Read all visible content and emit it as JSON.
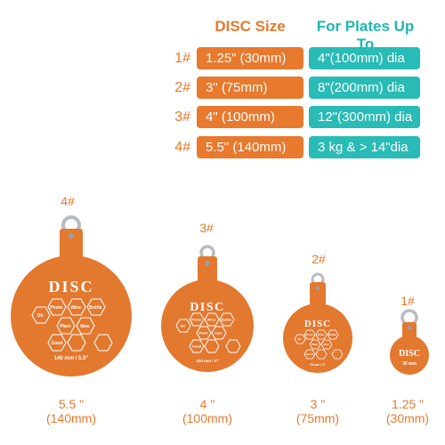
{
  "table": {
    "header_size": "DISC Size",
    "header_plates": "For Plates Up To",
    "rows": [
      {
        "num": "1#",
        "size": "1.25\" (30mm)",
        "plates": "4\"(100mm) dia"
      },
      {
        "num": "2#",
        "size": "3\" (75mm)",
        "plates": "8\"(200mm) dia"
      },
      {
        "num": "3#",
        "size": "4\" (100mm)",
        "plates": "12\"(300mm) dia"
      },
      {
        "num": "4#",
        "size": "5.5\" (140mm)",
        "plates": "3 kg & > 14\"dia"
      }
    ]
  },
  "discs": [
    {
      "num": "4#",
      "size_in": "5.5 \"",
      "size_mm": "(140mm)",
      "brand": "DISC",
      "engraving": "140 mm / 5.5\"",
      "words": [
        "Dir",
        "Photo",
        "Wine",
        "Bottle",
        "Plant",
        "Idea",
        "Good"
      ]
    },
    {
      "num": "3#",
      "size_in": "4 \"",
      "size_mm": "(100mm)",
      "brand": "DISC",
      "engraving": "100 mm / 4\"",
      "words": [
        "Dir",
        "Photo",
        "Wine",
        "Bottle",
        "Plant",
        "Idea",
        "Good"
      ]
    },
    {
      "num": "2#",
      "size_in": "3 \"",
      "size_mm": "(75mm)",
      "brand": "DISC",
      "engraving": "75 mm / 3\"",
      "words": [
        "Dir",
        "Photo",
        "Wine",
        "Bottle",
        "Plant",
        "Idea",
        "Good"
      ]
    },
    {
      "num": "1#",
      "size_in": "1.25 \"",
      "size_mm": "(30mm)",
      "brand": "DISC",
      "engraving": "30 mm"
    }
  ],
  "colors": {
    "orange": "#e8792d",
    "teal": "#29bbb5",
    "disc_fill": "#e3782f",
    "engraving": "#ffffff"
  }
}
